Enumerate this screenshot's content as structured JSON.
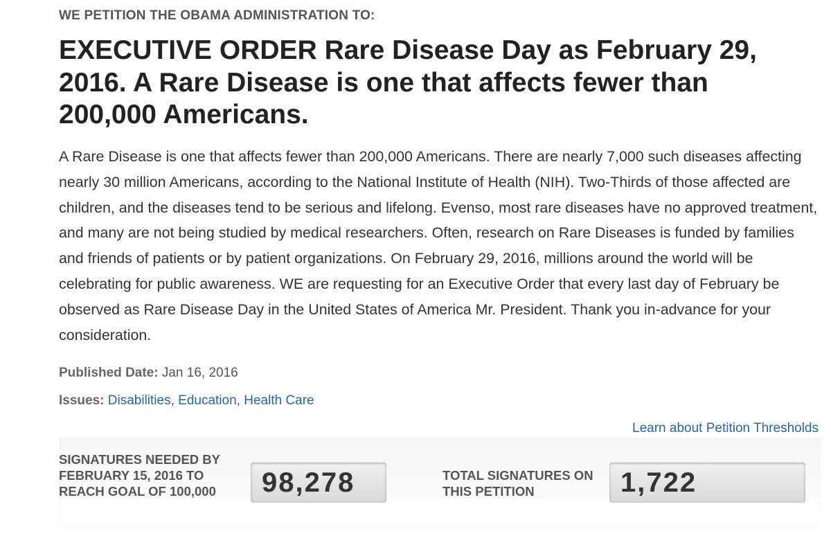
{
  "header": {
    "kicker": "WE PETITION THE OBAMA ADMINISTRATION TO:",
    "title": "EXECUTIVE ORDER Rare Disease Day as February 29, 2016. A Rare Disease is one that affects fewer than 200,000 Americans."
  },
  "body": "A Rare Disease is one that affects fewer than 200,000 Americans. There are nearly 7,000 such diseases affecting nearly 30 million Americans, according to the National Institute of Health (NIH). Two-Thirds of those affected are children, and the diseases tend to be serious and lifelong. Evenso, most rare diseases have no approved treatment, and many are not being studied by medical researchers. Often, research on Rare Diseases is funded by families and friends of patients or by patient organizations. On February 29, 2016, millions around the world will be celebrating for public awareness. WE are requesting for an Executive Order that every last day of February be observed as Rare Disease Day in the United States of America Mr. President. Thank you in-advance for your consideration.",
  "published": {
    "label": "Published Date:",
    "value": "Jan 16, 2016"
  },
  "issues": {
    "label": "Issues:",
    "separator": ",",
    "items": [
      "Disabilities",
      "Education",
      "Health Care"
    ]
  },
  "thresholds_link": "Learn about Petition Thresholds",
  "signatures": {
    "needed": {
      "label": "SIGNATURES NEEDED BY FEBRUARY 15, 2016 TO REACH GOAL OF 100,000",
      "value": "98,278"
    },
    "total": {
      "label": "TOTAL SIGNATURES ON THIS PETITION",
      "value": "1,722"
    }
  }
}
